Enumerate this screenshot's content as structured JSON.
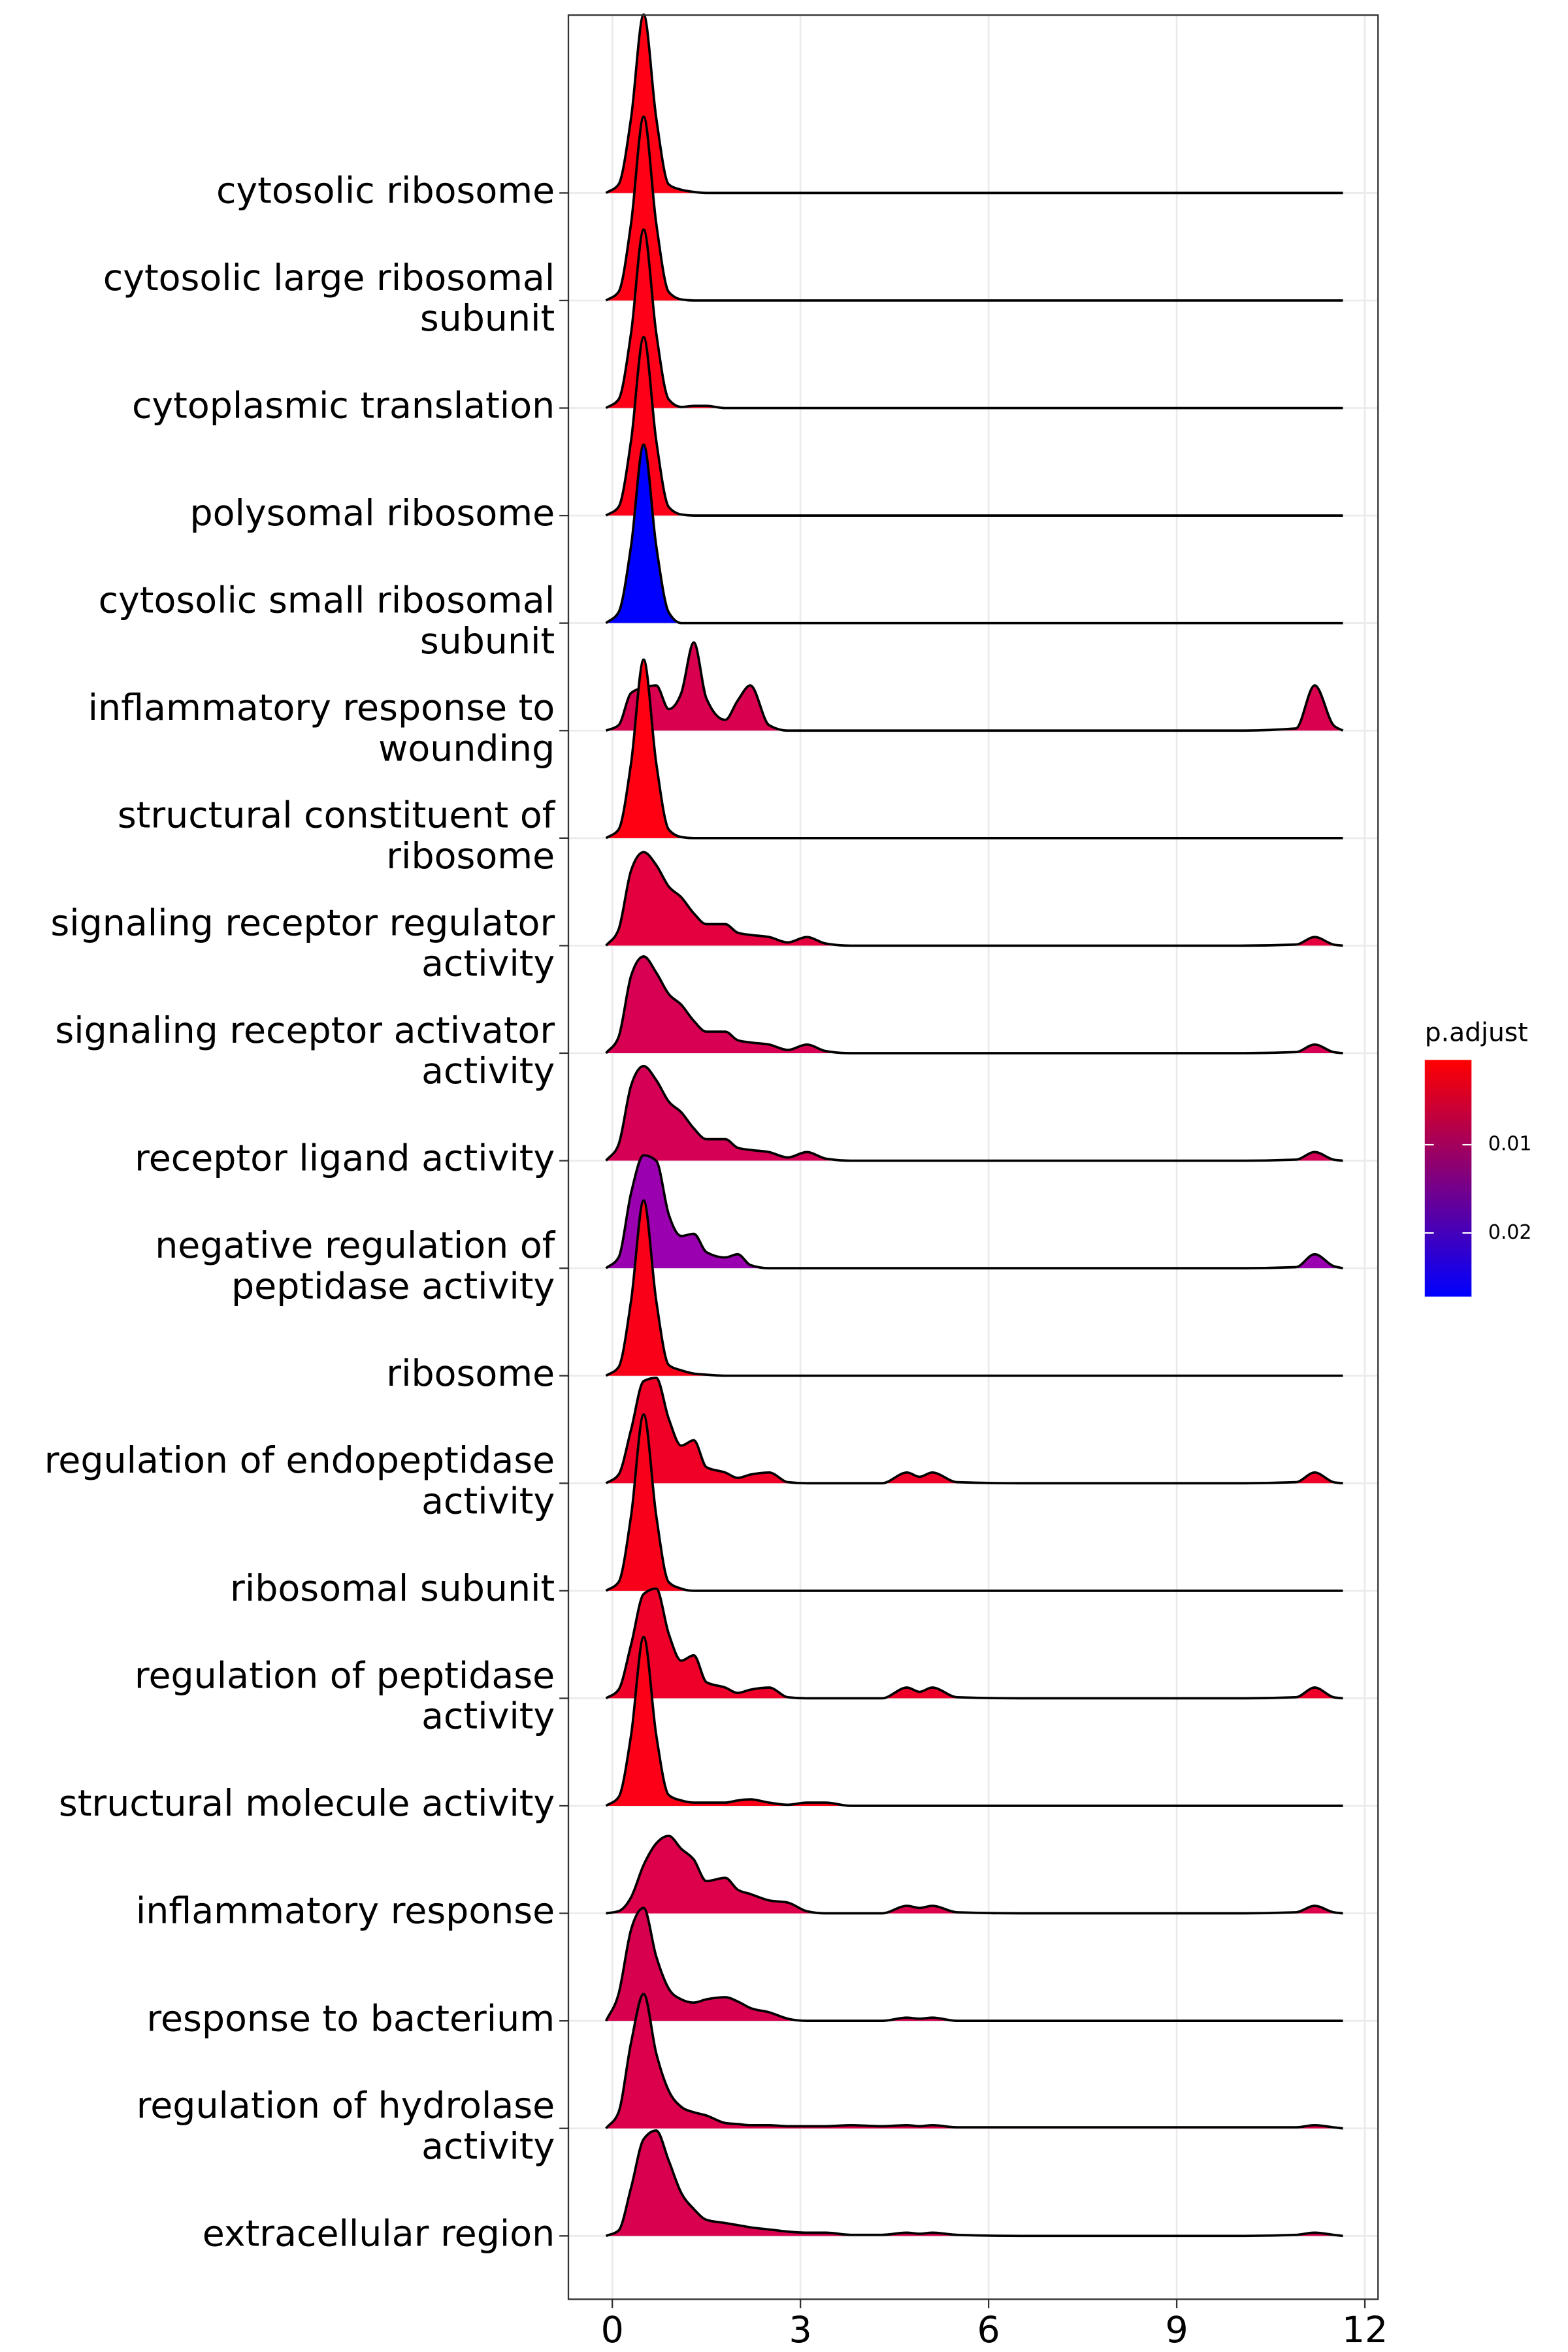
{
  "chart_data": {
    "type": "ridgeline",
    "categories": [
      "cytosolic ribosome",
      "cytosolic large ribosomal\nsubunit",
      "cytoplasmic translation",
      "polysomal ribosome",
      "cytosolic small ribosomal\nsubunit",
      "inflammatory response to\nwounding",
      "structural constituent of\nribosome",
      "signaling receptor regulator\nactivity",
      "signaling receptor activator\nactivity",
      "receptor ligand activity",
      "negative regulation of\npeptidase activity",
      "ribosome",
      "regulation of endopeptidase\nactivity",
      "ribosomal subunit",
      "regulation of peptidase\nactivity",
      "structural molecule activity",
      "inflammatory response",
      "response to bacterium",
      "regulation of hydrolase\nactivity",
      "extracellular region"
    ],
    "x": [
      -0.1,
      0.1,
      0.3,
      0.5,
      0.7,
      0.9,
      1.1,
      1.3,
      1.5,
      1.8,
      2.0,
      2.2,
      2.5,
      2.8,
      3.1,
      3.4,
      3.8,
      4.3,
      4.7,
      4.9,
      5.1,
      5.5,
      6.5,
      8,
      10,
      10.9,
      11.2,
      11.5,
      11.65
    ],
    "series": [
      {
        "color": "#ff0014",
        "values": [
          0,
          0.08,
          0.7,
          1.66,
          0.7,
          0.08,
          0.03,
          0.01,
          0,
          0,
          0,
          0,
          0,
          0,
          0,
          0,
          0,
          0,
          0,
          0,
          0,
          0,
          0,
          0,
          0,
          0,
          0,
          0,
          0
        ]
      },
      {
        "color": "#ff0014",
        "values": [
          0,
          0.08,
          0.72,
          1.71,
          0.72,
          0.08,
          0.01,
          0,
          0,
          0,
          0,
          0,
          0,
          0,
          0,
          0,
          0,
          0,
          0,
          0,
          0,
          0,
          0,
          0,
          0,
          0,
          0,
          0,
          0
        ]
      },
      {
        "color": "#fe0018",
        "values": [
          0,
          0.08,
          0.7,
          1.66,
          0.7,
          0.08,
          0.01,
          0.02,
          0.02,
          0,
          0,
          0,
          0,
          0,
          0,
          0,
          0,
          0,
          0,
          0,
          0,
          0,
          0,
          0,
          0,
          0,
          0,
          0,
          0
        ]
      },
      {
        "color": "#fe0018",
        "values": [
          0,
          0.08,
          0.7,
          1.66,
          0.7,
          0.08,
          0.01,
          0,
          0,
          0,
          0,
          0,
          0,
          0,
          0,
          0,
          0,
          0,
          0,
          0,
          0,
          0,
          0,
          0,
          0,
          0,
          0,
          0,
          0
        ]
      },
      {
        "color": "#0000ff",
        "values": [
          0,
          0.1,
          0.72,
          1.66,
          0.72,
          0.1,
          0,
          0,
          0,
          0,
          0,
          0,
          0,
          0,
          0,
          0,
          0,
          0,
          0,
          0,
          0,
          0,
          0,
          0,
          0,
          0,
          0,
          0,
          0
        ]
      },
      {
        "color": "#d9004f",
        "values": [
          0,
          0.05,
          0.35,
          0.4,
          0.42,
          0.2,
          0.35,
          0.82,
          0.3,
          0.1,
          0.28,
          0.42,
          0.05,
          0,
          0,
          0,
          0,
          0,
          0,
          0,
          0,
          0,
          0,
          0,
          0,
          0.02,
          0.42,
          0.05,
          0
        ]
      },
      {
        "color": "#ff0012",
        "values": [
          0,
          0.08,
          0.7,
          1.66,
          0.7,
          0.08,
          0.01,
          0,
          0,
          0,
          0,
          0,
          0,
          0,
          0,
          0,
          0,
          0,
          0,
          0,
          0,
          0,
          0,
          0,
          0,
          0,
          0,
          0,
          0
        ]
      },
      {
        "color": "#e4003f",
        "values": [
          0,
          0.15,
          0.7,
          0.87,
          0.75,
          0.55,
          0.45,
          0.3,
          0.2,
          0.2,
          0.12,
          0.1,
          0.08,
          0.03,
          0.08,
          0.02,
          0,
          0,
          0,
          0,
          0,
          0,
          0,
          0,
          0,
          0.01,
          0.08,
          0.01,
          0
        ]
      },
      {
        "color": "#d80052",
        "values": [
          0,
          0.15,
          0.72,
          0.9,
          0.75,
          0.55,
          0.45,
          0.3,
          0.2,
          0.2,
          0.12,
          0.1,
          0.08,
          0.03,
          0.08,
          0.02,
          0,
          0,
          0,
          0,
          0,
          0,
          0,
          0,
          0,
          0.01,
          0.08,
          0.01,
          0
        ]
      },
      {
        "color": "#d50056",
        "values": [
          0,
          0.15,
          0.7,
          0.88,
          0.75,
          0.55,
          0.45,
          0.3,
          0.2,
          0.2,
          0.12,
          0.1,
          0.08,
          0.03,
          0.08,
          0.02,
          0,
          0,
          0,
          0,
          0,
          0,
          0,
          0,
          0,
          0.01,
          0.08,
          0.01,
          0
        ]
      },
      {
        "color": "#9a00b0",
        "values": [
          0,
          0.1,
          0.7,
          1.05,
          1.0,
          0.5,
          0.3,
          0.32,
          0.15,
          0.1,
          0.13,
          0.03,
          0,
          0,
          0,
          0,
          0,
          0,
          0,
          0,
          0,
          0,
          0,
          0,
          0,
          0.01,
          0.13,
          0.02,
          0
        ]
      },
      {
        "color": "#fa0018",
        "values": [
          0,
          0.08,
          0.7,
          1.63,
          0.7,
          0.1,
          0.05,
          0.02,
          0.01,
          0,
          0,
          0,
          0,
          0,
          0,
          0,
          0,
          0,
          0,
          0,
          0,
          0,
          0,
          0,
          0,
          0,
          0,
          0,
          0
        ]
      },
      {
        "color": "#f00026",
        "values": [
          0,
          0.08,
          0.5,
          0.95,
          0.98,
          0.6,
          0.35,
          0.4,
          0.15,
          0.1,
          0.05,
          0.08,
          0.1,
          0.01,
          0,
          0,
          0,
          0,
          0.1,
          0.06,
          0.1,
          0.01,
          0,
          0,
          0,
          0.01,
          0.1,
          0.01,
          0
        ]
      },
      {
        "color": "#f9001a",
        "values": [
          0,
          0.08,
          0.7,
          1.64,
          0.7,
          0.08,
          0.02,
          0,
          0,
          0,
          0,
          0,
          0,
          0,
          0,
          0,
          0,
          0,
          0,
          0,
          0,
          0,
          0,
          0,
          0,
          0,
          0,
          0,
          0
        ]
      },
      {
        "color": "#ef0028",
        "values": [
          0,
          0.08,
          0.5,
          0.97,
          1.02,
          0.6,
          0.35,
          0.4,
          0.15,
          0.1,
          0.05,
          0.08,
          0.1,
          0.01,
          0,
          0,
          0,
          0,
          0.1,
          0.06,
          0.1,
          0.01,
          0,
          0,
          0,
          0.01,
          0.1,
          0.01,
          0
        ]
      },
      {
        "color": "#fb0016",
        "values": [
          0,
          0.08,
          0.66,
          1.57,
          0.66,
          0.1,
          0.05,
          0.03,
          0.03,
          0.03,
          0.05,
          0.06,
          0.03,
          0.01,
          0.03,
          0.03,
          0,
          0,
          0,
          0,
          0,
          0,
          0,
          0,
          0,
          0,
          0,
          0,
          0
        ]
      },
      {
        "color": "#dd004b",
        "values": [
          0,
          0.02,
          0.15,
          0.45,
          0.65,
          0.72,
          0.6,
          0.5,
          0.3,
          0.33,
          0.22,
          0.18,
          0.12,
          0.1,
          0.02,
          0,
          0,
          0,
          0.07,
          0.05,
          0.07,
          0.01,
          0,
          0,
          0,
          0.01,
          0.07,
          0.01,
          0
        ]
      },
      {
        "color": "#d6004f",
        "values": [
          0,
          0.25,
          0.85,
          1.05,
          0.6,
          0.3,
          0.2,
          0.17,
          0.2,
          0.22,
          0.18,
          0.12,
          0.08,
          0.02,
          0,
          0,
          0,
          0,
          0.03,
          0.02,
          0.03,
          0,
          0,
          0,
          0,
          0,
          0,
          0,
          0
        ]
      },
      {
        "color": "#dc004c",
        "values": [
          0,
          0.15,
          0.8,
          1.25,
          0.7,
          0.35,
          0.2,
          0.15,
          0.12,
          0.05,
          0.04,
          0.03,
          0.03,
          0.02,
          0.02,
          0.02,
          0.03,
          0.02,
          0.03,
          0.02,
          0.03,
          0.01,
          0.01,
          0.01,
          0.01,
          0.01,
          0.03,
          0.01,
          0
        ]
      },
      {
        "color": "#d8004f",
        "values": [
          0,
          0.05,
          0.45,
          0.9,
          0.98,
          0.7,
          0.4,
          0.25,
          0.15,
          0.12,
          0.1,
          0.08,
          0.06,
          0.04,
          0.03,
          0.03,
          0.01,
          0.01,
          0.03,
          0.02,
          0.03,
          0.01,
          0,
          0,
          0,
          0.01,
          0.03,
          0.01,
          0
        ]
      }
    ],
    "xlim": [
      -0.7,
      12.21
    ],
    "xticks": [
      0,
      3,
      6,
      9,
      12
    ],
    "grid": true,
    "legend_position": "right",
    "colorbar": {
      "title": "p.adjust",
      "lim": [
        0.0004,
        0.0272
      ],
      "ticks": [
        0.01,
        0.02
      ],
      "colors": [
        "#ff0000",
        "#0000ff"
      ]
    }
  }
}
